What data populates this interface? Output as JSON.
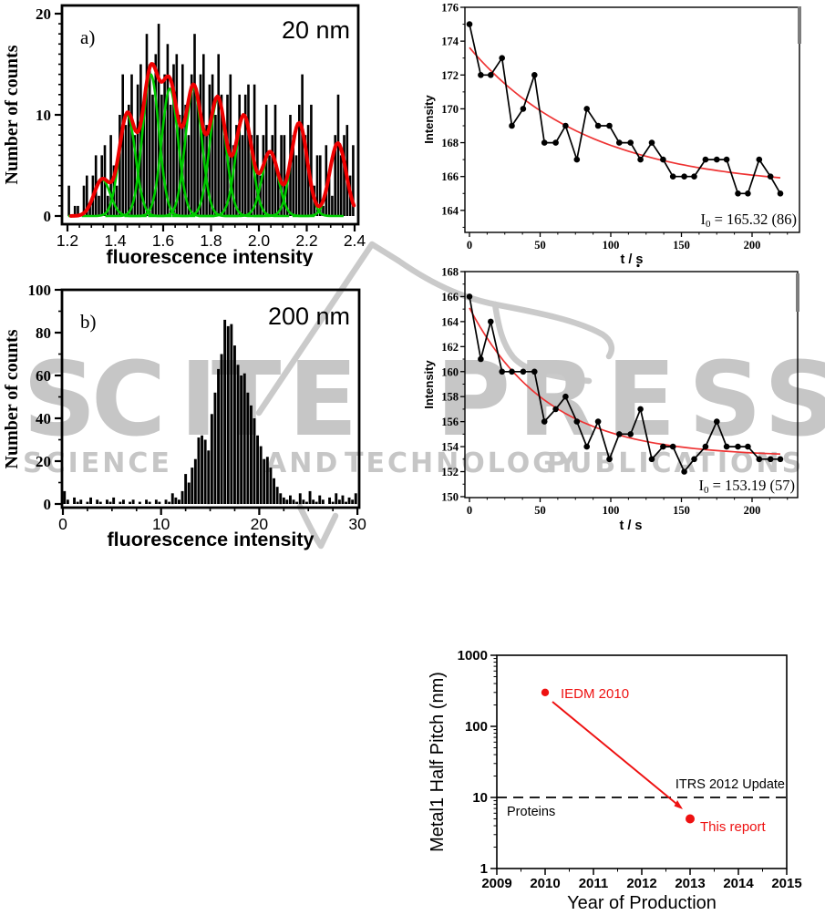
{
  "watermark": {
    "brand": "SCITEPRESS",
    "letters": [
      "S",
      "C",
      "I",
      "T",
      "E",
      "P",
      "R",
      "E",
      "S",
      "S"
    ],
    "tagline": "SCIENCE AND TECHNOLOGY PUBLICATIONS",
    "tagline_words": [
      "SCIENCE",
      "AND",
      "TECHNOLOGY",
      "PUBLICATIONS"
    ],
    "color": "#c6c6c6"
  },
  "chart_data": [
    {
      "id": "hist20",
      "type": "bar",
      "panel_label": "a)",
      "corner_label": "20 nm",
      "xlabel": "fluorescence intensity",
      "ylabel": "Number of counts",
      "xlim": [
        1.2,
        2.4
      ],
      "ylim": [
        0,
        20
      ],
      "x_ticks": [
        1.2,
        1.4,
        1.6,
        1.8,
        2.0,
        2.2,
        2.4
      ],
      "y_ticks": [
        0,
        10,
        20
      ],
      "bin_start": 1.2,
      "bin_width": 0.0125,
      "values": [
        3,
        0,
        1,
        1,
        0,
        3,
        4,
        1,
        4,
        6,
        2,
        6,
        7,
        2,
        8,
        5,
        3,
        10,
        14,
        9,
        11,
        14,
        8,
        13,
        15,
        11,
        18,
        15,
        12,
        16,
        19,
        12,
        14,
        17,
        11,
        15,
        16,
        10,
        15,
        11,
        8,
        14,
        18,
        12,
        14,
        16,
        9,
        13,
        14,
        10,
        16,
        12,
        8,
        12,
        14,
        7,
        9,
        12,
        8,
        12,
        13,
        8,
        13,
        8,
        4,
        8,
        11,
        6,
        8,
        11,
        4,
        8,
        8,
        4,
        10,
        8,
        6,
        11,
        14,
        8,
        9,
        11,
        3,
        6,
        6,
        1,
        7,
        4,
        2,
        8,
        12,
        6,
        8,
        9,
        4,
        7
      ],
      "gauss_components": {
        "color": "#00cc00",
        "sigma": 0.034,
        "centers": [
          1.345,
          1.45,
          1.548,
          1.628,
          1.727,
          1.828,
          1.937,
          2.047,
          2.168,
          2.33
        ],
        "heights": [
          3.6,
          10.0,
          14.0,
          12.6,
          12.7,
          11.6,
          9.9,
          6.3,
          9.2,
          7.2
        ]
      },
      "envelope_color": "#ee0000"
    },
    {
      "id": "hist200",
      "type": "bar",
      "panel_label": "b)",
      "corner_label": "200 nm",
      "xlabel": "fluorescence intensity",
      "ylabel": "Number of counts",
      "xlim": [
        0,
        30
      ],
      "ylim": [
        0,
        100
      ],
      "x_ticks": [
        0,
        10,
        20,
        30
      ],
      "y_ticks": [
        0,
        20,
        40,
        60,
        80,
        100
      ],
      "bin_start": 0,
      "bin_width": 0.3333,
      "values": [
        6,
        2,
        0,
        3,
        1,
        2,
        0,
        1,
        3,
        0,
        2,
        1,
        0,
        2,
        1,
        3,
        0,
        1,
        2,
        0,
        1,
        2,
        0,
        1,
        0,
        2,
        1,
        0,
        2,
        1,
        0,
        2,
        1,
        5,
        3,
        2,
        6,
        14,
        10,
        17,
        21,
        31,
        32,
        30,
        25,
        42,
        52,
        63,
        70,
        86,
        83,
        84,
        74,
        65,
        60,
        61,
        52,
        46,
        40,
        32,
        27,
        21,
        22,
        17,
        12,
        8,
        5,
        3,
        2,
        4,
        2,
        1,
        5,
        2,
        1,
        6,
        2,
        1,
        4,
        2,
        0,
        3,
        1,
        5,
        2,
        4,
        1,
        3,
        2,
        5
      ]
    },
    {
      "id": "decay20",
      "type": "line",
      "xlabel": "t / s",
      "ylabel": "Intensity",
      "xlim": [
        0,
        220
      ],
      "ylim": [
        162.7,
        176
      ],
      "x_ticks": [
        0,
        50,
        100,
        150,
        200
      ],
      "y_ticks": [
        164,
        166,
        168,
        170,
        172,
        174,
        176
      ],
      "x": [
        0,
        8,
        15,
        23,
        30,
        38,
        46,
        53,
        61,
        68,
        76,
        83,
        91,
        99,
        106,
        114,
        121,
        129,
        137,
        144,
        152,
        159,
        167,
        175,
        182,
        190,
        197,
        205,
        213,
        220
      ],
      "y": [
        175,
        172,
        172,
        173,
        169,
        170,
        172,
        168,
        168,
        169,
        167,
        170,
        169,
        169,
        168,
        168,
        167,
        168,
        167,
        166,
        166,
        166,
        167,
        167,
        167,
        165,
        165,
        167,
        166,
        165
      ],
      "fit": {
        "I0": 165.32,
        "amplitude": 8.3,
        "tau": 84,
        "color": "#ee3333"
      },
      "annotation": {
        "sym": "I",
        "sub": "0",
        "rest": " = 165.32 (86)"
      }
    },
    {
      "id": "decay200",
      "type": "line",
      "xlabel": "t / s",
      "ylabel": "Intensity",
      "xlim": [
        0,
        220
      ],
      "ylim": [
        149.8,
        168
      ],
      "x_ticks": [
        0,
        50,
        100,
        150,
        200
      ],
      "y_ticks": [
        150,
        152,
        154,
        156,
        158,
        160,
        162,
        164,
        166,
        168
      ],
      "x": [
        0,
        8,
        15,
        23,
        30,
        38,
        46,
        53,
        61,
        68,
        76,
        83,
        91,
        99,
        106,
        114,
        121,
        129,
        137,
        144,
        152,
        159,
        167,
        175,
        182,
        190,
        197,
        205,
        213,
        220
      ],
      "y": [
        166,
        161,
        164,
        160,
        160,
        160,
        160,
        156,
        157,
        158,
        156,
        154,
        156,
        153,
        155,
        155,
        157,
        153,
        154,
        154,
        152,
        153,
        154,
        156,
        154,
        154,
        154,
        153,
        153,
        153
      ],
      "fit": {
        "I0": 153.19,
        "amplitude": 11.9,
        "tau": 55,
        "color": "#ee3333"
      },
      "annotation": {
        "sym": "I",
        "sub": "0",
        "rest": " = 153.19 (57)"
      }
    },
    {
      "id": "roadmap",
      "type": "scatter",
      "xlabel": "Year of Production",
      "ylabel": "Metal1 Half Pitch (nm)",
      "log_y": true,
      "xlim": [
        2009,
        2015
      ],
      "ylim": [
        1,
        1000
      ],
      "x_ticks": [
        2009,
        2010,
        2011,
        2012,
        2013,
        2014,
        2015
      ],
      "y_ticks": [
        1,
        10,
        100,
        1000
      ],
      "points": [
        {
          "x": 2010,
          "y": 300,
          "label": "IEDM 2010"
        },
        {
          "x": 2013,
          "y": 5,
          "label": "This report"
        }
      ],
      "dashed_line": {
        "y": 10,
        "label": "ITRS 2012 Update"
      },
      "side_label": "Proteins",
      "point_color": "#ee1111"
    }
  ]
}
